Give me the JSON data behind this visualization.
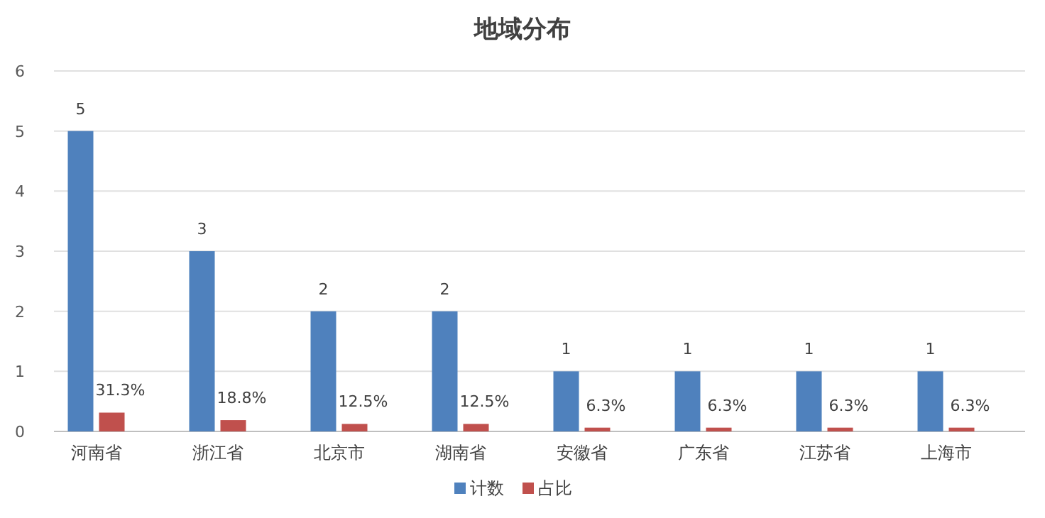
{
  "chart_data": {
    "type": "bar",
    "title": "地域分布",
    "categories": [
      "河南省",
      "浙江省",
      "北京市",
      "湖南省",
      "安徽省",
      "广东省",
      "江苏省",
      "上海市"
    ],
    "series": [
      {
        "name": "计数",
        "color": "#4f81bd",
        "values": [
          5,
          3,
          2,
          2,
          1,
          1,
          1,
          1
        ],
        "value_labels": [
          "5",
          "3",
          "2",
          "2",
          "1",
          "1",
          "1",
          "1"
        ]
      },
      {
        "name": "占比",
        "color": "#c0504d",
        "values": [
          0.313,
          0.188,
          0.125,
          0.125,
          0.063,
          0.063,
          0.063,
          0.063
        ],
        "value_labels": [
          "31.3%",
          "18.8%",
          "12.5%",
          "12.5%",
          "6.3%",
          "6.3%",
          "6.3%",
          "6.3%"
        ]
      }
    ],
    "ylim": [
      0,
      6
    ],
    "yticks": [
      0,
      1,
      2,
      3,
      4,
      5,
      6
    ],
    "grid": "y",
    "legend": "bottom"
  }
}
